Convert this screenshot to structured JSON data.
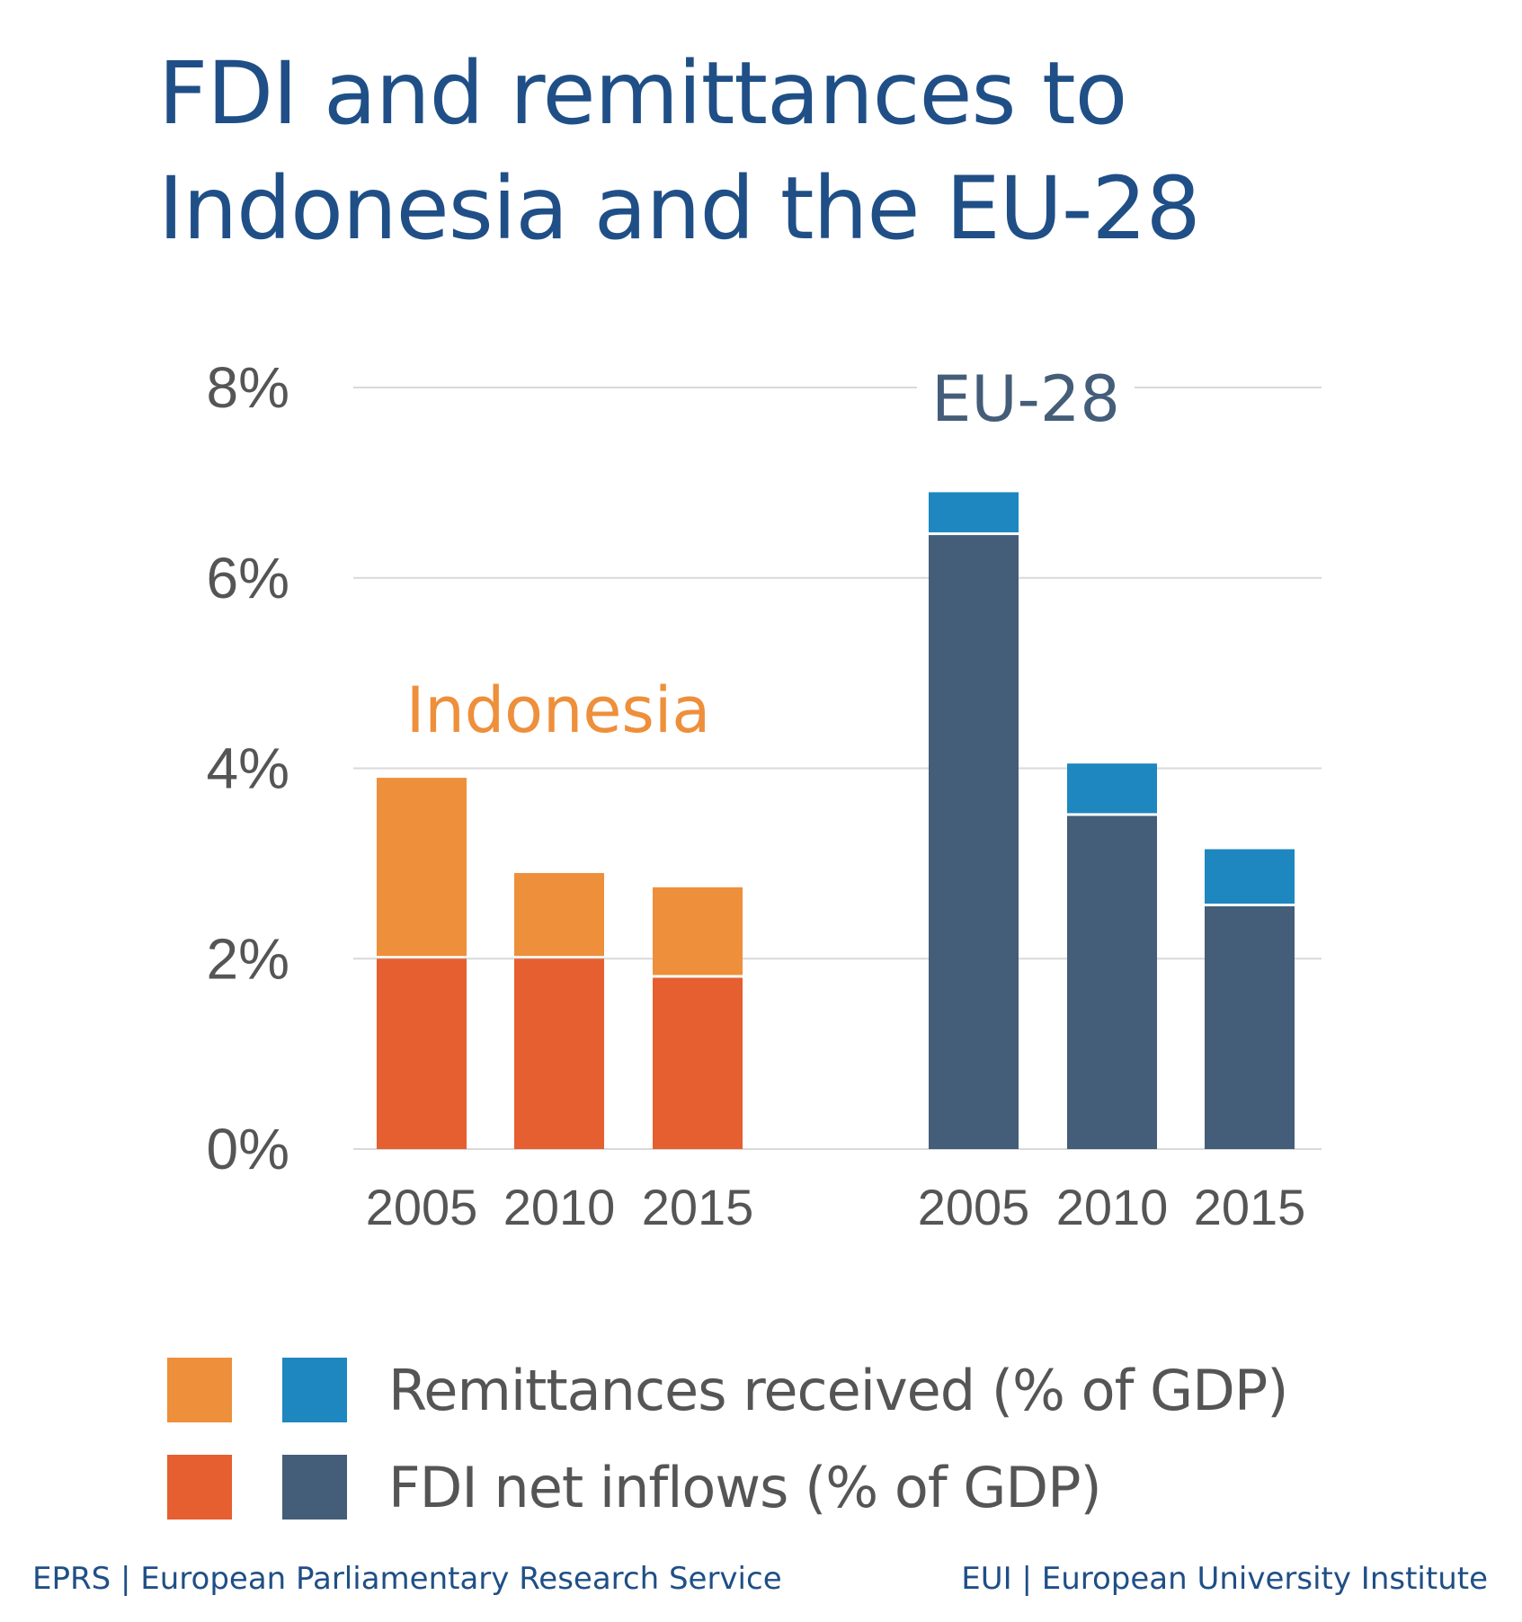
{
  "title": "FDI and remittances to Indonesia and the EU-28",
  "colors": {
    "indonesia_remittances": "#ee8f3b",
    "indonesia_fdi": "#e55f30",
    "eu_remittances": "#1e87bf",
    "eu_fdi": "#445d78",
    "indonesia_label": "#ee8f3b",
    "eu_label": "#445d78",
    "grid": "#d9d9d9",
    "tick_text": "#555555",
    "title": "#1f4f86"
  },
  "chart_data": {
    "type": "bar",
    "stacked": true,
    "ylim": [
      0,
      8
    ],
    "y_ticks": [
      "0%",
      "2%",
      "4%",
      "6%",
      "8%"
    ],
    "grid": true,
    "groups": [
      {
        "name": "Indonesia",
        "categories": [
          "2005",
          "2010",
          "2015"
        ],
        "series": [
          {
            "name": "FDI net inflows (% of GDP)",
            "values": [
              2.0,
              2.0,
              1.8
            ]
          },
          {
            "name": "Remittances received (% of GDP)",
            "values": [
              1.9,
              0.9,
              0.95
            ]
          }
        ]
      },
      {
        "name": "EU-28",
        "categories": [
          "2005",
          "2010",
          "2015"
        ],
        "series": [
          {
            "name": "FDI net inflows (% of GDP)",
            "values": [
              6.45,
              3.5,
              2.55
            ]
          },
          {
            "name": "Remittances received (% of GDP)",
            "values": [
              0.45,
              0.55,
              0.6
            ]
          }
        ]
      }
    ]
  },
  "legend": {
    "remittances": "Remittances received (% of GDP)",
    "fdi": "FDI net inflows (% of GDP)"
  },
  "footer": {
    "left": "EPRS | European Parliamentary Research Service",
    "right": "EUI | European University Institute"
  }
}
